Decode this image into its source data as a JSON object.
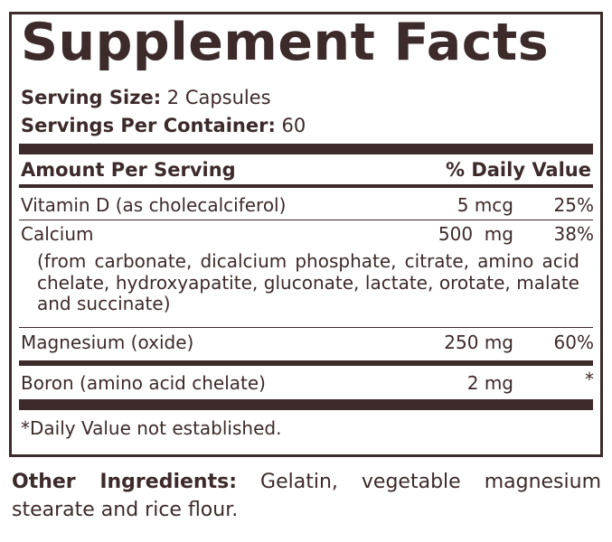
{
  "title": "Supplement Facts",
  "serving_size": {
    "label": "Serving Size:",
    "value": "2 Capsules"
  },
  "servings_per_container": {
    "label": "Servings Per Container:",
    "value": "60"
  },
  "header": {
    "left": "Amount Per Serving",
    "right": "% Daily Value"
  },
  "rows": [
    {
      "name": "Vitamin D (as cholecalciferol)",
      "amount": "5 mcg",
      "dv": "25%"
    },
    {
      "name": "Calcium",
      "amount": "500  mg",
      "dv": "38%",
      "note": "(from carbonate, dicalcium phosphate, citrate, amino acid chelate, hydroxyapatite, gluconate, lactate, orotate, malate and succinate)"
    },
    {
      "name": "Magnesium (oxide)",
      "amount": "250 mg",
      "dv": "60%"
    },
    {
      "name": "Boron (amino acid chelate)",
      "amount": "2 mg",
      "dv": "*"
    }
  ],
  "footnote": "*Daily Value not established.",
  "other_ingredients": {
    "label": "Other Ingredients:",
    "text": "Gelatin, vegetable magnesium stearate and rice flour."
  },
  "colors": {
    "ink": "#3d2a2a"
  }
}
